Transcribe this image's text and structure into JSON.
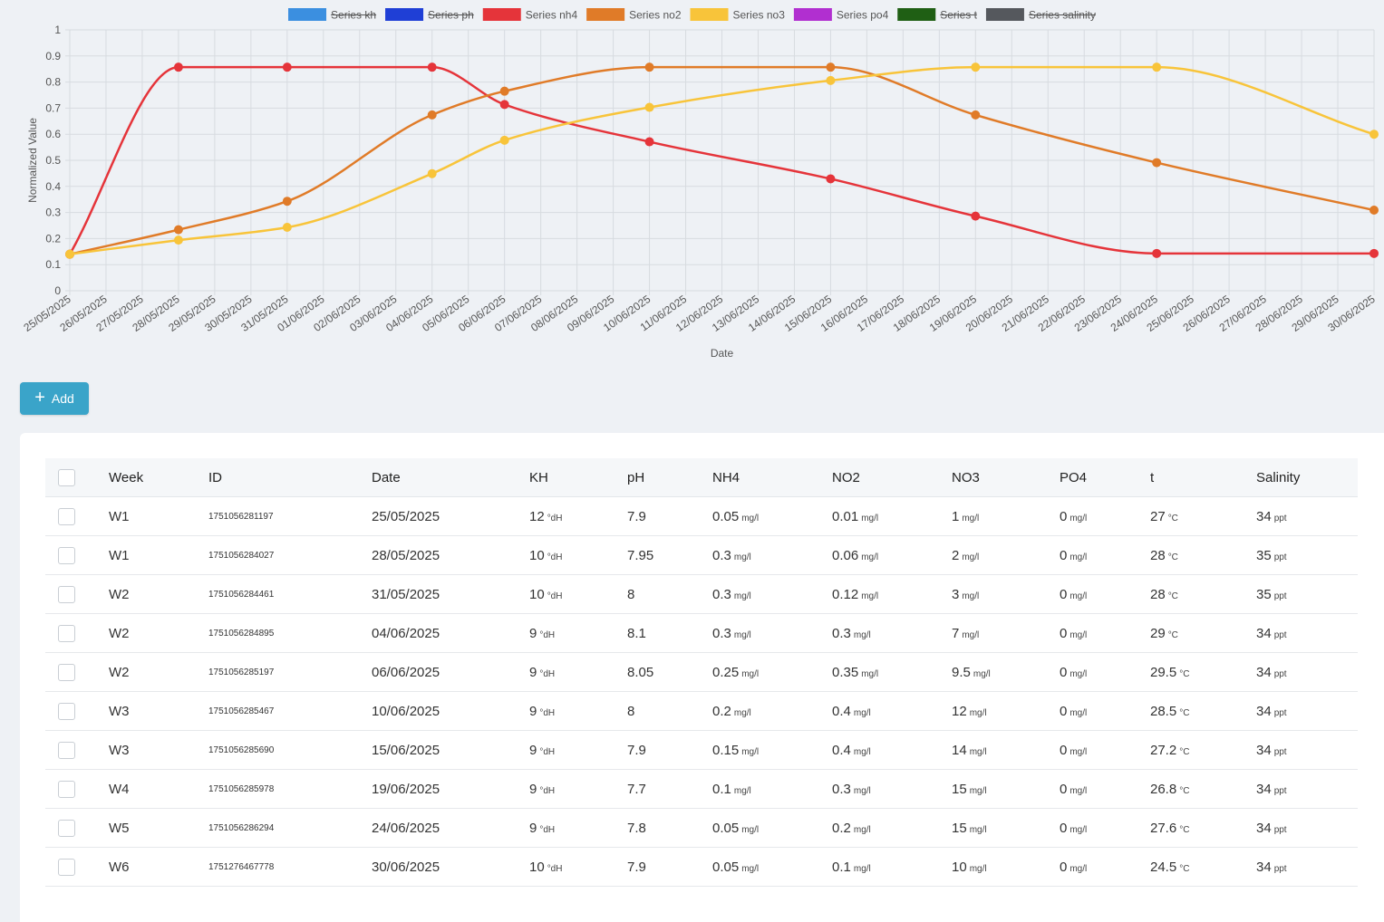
{
  "chart_data": {
    "type": "line",
    "ylabel": "Normalized Value",
    "xlabel": "Date",
    "ylim": [
      0,
      1
    ],
    "yticks": [
      "0",
      "0.1",
      "0.2",
      "0.3",
      "0.4",
      "0.5",
      "0.6",
      "0.7",
      "0.8",
      "0.9",
      "1"
    ],
    "categories": [
      "25/05/2025",
      "26/05/2025",
      "27/05/2025",
      "28/05/2025",
      "29/05/2025",
      "30/05/2025",
      "31/05/2025",
      "01/06/2025",
      "02/06/2025",
      "03/06/2025",
      "04/06/2025",
      "05/06/2025",
      "06/06/2025",
      "07/06/2025",
      "08/06/2025",
      "09/06/2025",
      "10/06/2025",
      "11/06/2025",
      "12/06/2025",
      "13/06/2025",
      "14/06/2025",
      "15/06/2025",
      "16/06/2025",
      "17/06/2025",
      "18/06/2025",
      "19/06/2025",
      "20/06/2025",
      "21/06/2025",
      "22/06/2025",
      "23/06/2025",
      "24/06/2025",
      "25/06/2025",
      "26/06/2025",
      "27/06/2025",
      "28/06/2025",
      "29/06/2025",
      "30/06/2025"
    ],
    "grid": true,
    "legend_position": "top",
    "legend": [
      {
        "name": "Series kh",
        "color": "#3b8fe0",
        "hidden": true
      },
      {
        "name": "Series ph",
        "color": "#1f3fd6",
        "hidden": true
      },
      {
        "name": "Series nh4",
        "color": "#e5343a",
        "hidden": false
      },
      {
        "name": "Series no2",
        "color": "#e07b28",
        "hidden": false
      },
      {
        "name": "Series no3",
        "color": "#f8c43a",
        "hidden": false
      },
      {
        "name": "Series po4",
        "color": "#b12fd0",
        "hidden": false
      },
      {
        "name": "Series t",
        "color": "#1f5f14",
        "hidden": true
      },
      {
        "name": "Series salinity",
        "color": "#55585d",
        "hidden": true
      }
    ],
    "series": [
      {
        "name": "Series nh4",
        "color": "#e5343a",
        "x": [
          "25/05/2025",
          "28/05/2025",
          "31/05/2025",
          "04/06/2025",
          "06/06/2025",
          "10/06/2025",
          "15/06/2025",
          "19/06/2025",
          "24/06/2025",
          "30/06/2025"
        ],
        "values": [
          0.14,
          0.857,
          0.857,
          0.857,
          0.714,
          0.571,
          0.429,
          0.286,
          0.143,
          0.143
        ]
      },
      {
        "name": "Series no2",
        "color": "#e07b28",
        "x": [
          "25/05/2025",
          "28/05/2025",
          "31/05/2025",
          "04/06/2025",
          "06/06/2025",
          "10/06/2025",
          "15/06/2025",
          "19/06/2025",
          "24/06/2025",
          "30/06/2025"
        ],
        "values": [
          0.14,
          0.234,
          0.343,
          0.674,
          0.765,
          0.857,
          0.857,
          0.674,
          0.491,
          0.309
        ]
      },
      {
        "name": "Series no3",
        "color": "#f8c43a",
        "x": [
          "25/05/2025",
          "28/05/2025",
          "31/05/2025",
          "04/06/2025",
          "06/06/2025",
          "10/06/2025",
          "15/06/2025",
          "19/06/2025",
          "24/06/2025",
          "30/06/2025"
        ],
        "values": [
          0.14,
          0.194,
          0.243,
          0.449,
          0.577,
          0.703,
          0.806,
          0.857,
          0.857,
          0.6
        ]
      }
    ]
  },
  "toolbar": {
    "add_label": "Add"
  },
  "table": {
    "headers": [
      "Week",
      "ID",
      "Date",
      "KH",
      "pH",
      "NH4",
      "NO2",
      "NO3",
      "PO4",
      "t",
      "Salinity"
    ],
    "units": {
      "kh": "°dH",
      "mgl": "mg/l",
      "t": "°C",
      "sal": "ppt"
    },
    "rows": [
      {
        "week": "W1",
        "id": "1751056281197",
        "date": "25/05/2025",
        "kh": "12",
        "ph": "7.9",
        "nh4": "0.05",
        "no2": "0.01",
        "no3": "1",
        "po4": "0",
        "t": "27",
        "sal": "34"
      },
      {
        "week": "W1",
        "id": "1751056284027",
        "date": "28/05/2025",
        "kh": "10",
        "ph": "7.95",
        "nh4": "0.3",
        "no2": "0.06",
        "no3": "2",
        "po4": "0",
        "t": "28",
        "sal": "35"
      },
      {
        "week": "W2",
        "id": "1751056284461",
        "date": "31/05/2025",
        "kh": "10",
        "ph": "8",
        "nh4": "0.3",
        "no2": "0.12",
        "no3": "3",
        "po4": "0",
        "t": "28",
        "sal": "35"
      },
      {
        "week": "W2",
        "id": "1751056284895",
        "date": "04/06/2025",
        "kh": "9",
        "ph": "8.1",
        "nh4": "0.3",
        "no2": "0.3",
        "no3": "7",
        "po4": "0",
        "t": "29",
        "sal": "34"
      },
      {
        "week": "W2",
        "id": "1751056285197",
        "date": "06/06/2025",
        "kh": "9",
        "ph": "8.05",
        "nh4": "0.25",
        "no2": "0.35",
        "no3": "9.5",
        "po4": "0",
        "t": "29.5",
        "sal": "34"
      },
      {
        "week": "W3",
        "id": "1751056285467",
        "date": "10/06/2025",
        "kh": "9",
        "ph": "8",
        "nh4": "0.2",
        "no2": "0.4",
        "no3": "12",
        "po4": "0",
        "t": "28.5",
        "sal": "34"
      },
      {
        "week": "W3",
        "id": "1751056285690",
        "date": "15/06/2025",
        "kh": "9",
        "ph": "7.9",
        "nh4": "0.15",
        "no2": "0.4",
        "no3": "14",
        "po4": "0",
        "t": "27.2",
        "sal": "34"
      },
      {
        "week": "W4",
        "id": "1751056285978",
        "date": "19/06/2025",
        "kh": "9",
        "ph": "7.7",
        "nh4": "0.1",
        "no2": "0.3",
        "no3": "15",
        "po4": "0",
        "t": "26.8",
        "sal": "34"
      },
      {
        "week": "W5",
        "id": "1751056286294",
        "date": "24/06/2025",
        "kh": "9",
        "ph": "7.8",
        "nh4": "0.05",
        "no2": "0.2",
        "no3": "15",
        "po4": "0",
        "t": "27.6",
        "sal": "34"
      },
      {
        "week": "W6",
        "id": "1751276467778",
        "date": "30/06/2025",
        "kh": "10",
        "ph": "7.9",
        "nh4": "0.05",
        "no2": "0.1",
        "no3": "10",
        "po4": "0",
        "t": "24.5",
        "sal": "34"
      }
    ]
  }
}
